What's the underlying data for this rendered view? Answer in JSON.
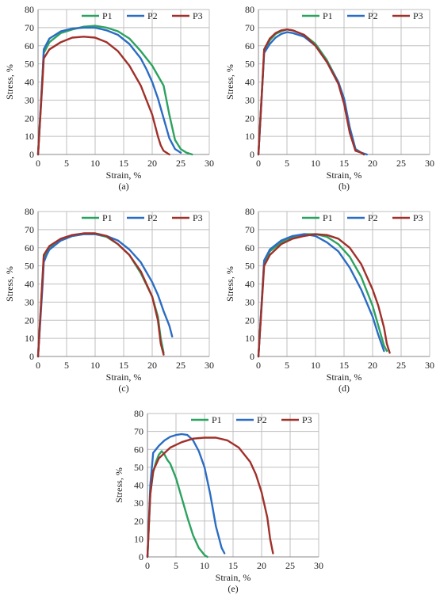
{
  "colors": {
    "P1": "#2ca25f",
    "P2": "#2b6cc4",
    "P3": "#a0302a",
    "grid": "#bfbfbf",
    "axis": "#8a8a8a"
  },
  "chart_data": [
    {
      "type": "line",
      "panel_label": "(a)",
      "xlabel": "Strain, %",
      "ylabel": "Stress, %",
      "xlim": [
        0,
        30
      ],
      "ylim": [
        0,
        80
      ],
      "xticks": [
        0,
        5,
        10,
        15,
        20,
        25,
        30
      ],
      "yticks": [
        0,
        10,
        20,
        30,
        40,
        50,
        60,
        70,
        80
      ],
      "grid": true,
      "legend_position": "top",
      "series": [
        {
          "name": "P1",
          "x": [
            0,
            0.8,
            1.0,
            2,
            4,
            6,
            8,
            10,
            12,
            14,
            16,
            18,
            20,
            22,
            23,
            24,
            25,
            26,
            27
          ],
          "y": [
            0,
            45,
            56,
            62,
            67,
            69,
            70.5,
            71,
            70,
            68,
            64,
            57,
            49,
            38,
            22,
            8,
            3,
            1,
            0
          ]
        },
        {
          "name": "P2",
          "x": [
            0,
            0.8,
            1.0,
            2,
            4,
            6,
            8,
            10,
            12,
            14,
            16,
            18,
            19,
            20,
            21,
            22,
            23,
            24,
            25
          ],
          "y": [
            0,
            45,
            58,
            64,
            68,
            69.5,
            70,
            70,
            68.5,
            66,
            61,
            53,
            47,
            40,
            31,
            20,
            9,
            3,
            1
          ]
        },
        {
          "name": "P3",
          "x": [
            0,
            0.8,
            1.0,
            2,
            4,
            6,
            8,
            10,
            12,
            14,
            16,
            18,
            19,
            20,
            21,
            21.5,
            22,
            23
          ],
          "y": [
            0,
            42,
            53,
            58,
            62,
            64.5,
            65,
            64.5,
            62,
            57,
            49,
            38,
            30,
            22,
            10,
            5,
            2,
            0
          ]
        }
      ]
    },
    {
      "type": "line",
      "panel_label": "(b)",
      "xlabel": "Strain, %",
      "ylabel": "Stress, %",
      "xlim": [
        0,
        30
      ],
      "ylim": [
        0,
        80
      ],
      "xticks": [
        0,
        5,
        10,
        15,
        20,
        25,
        30
      ],
      "yticks": [
        0,
        10,
        20,
        30,
        40,
        50,
        60,
        70,
        80
      ],
      "grid": true,
      "legend_position": "top",
      "series": [
        {
          "name": "P1",
          "x": [
            0,
            0.8,
            1.0,
            2,
            3,
            4,
            5,
            6,
            8,
            10,
            12,
            14,
            15,
            16,
            17,
            18,
            18.5
          ],
          "y": [
            0,
            45,
            57,
            63,
            66.5,
            68,
            69,
            68.5,
            66,
            61,
            52,
            40,
            30,
            14,
            3,
            1,
            0
          ]
        },
        {
          "name": "P2",
          "x": [
            0,
            0.8,
            1.0,
            2,
            3,
            4,
            5,
            6,
            8,
            10,
            12,
            14,
            15,
            16,
            17,
            18,
            19
          ],
          "y": [
            0,
            45,
            56,
            61,
            64.5,
            66.5,
            67.5,
            67,
            65,
            60,
            51,
            40,
            31,
            15,
            3,
            1,
            0
          ]
        },
        {
          "name": "P3",
          "x": [
            0,
            0.8,
            1.0,
            2,
            3,
            4,
            5,
            6,
            8,
            10,
            12,
            14,
            15,
            16,
            17,
            18,
            18.5
          ],
          "y": [
            0,
            46,
            58,
            64,
            67,
            68.5,
            69,
            68.5,
            66,
            60,
            51,
            39,
            28,
            12,
            2,
            1,
            0
          ]
        }
      ]
    },
    {
      "type": "line",
      "panel_label": "(c)",
      "xlabel": "Strain, %",
      "ylabel": "Stress, %",
      "xlim": [
        0,
        30
      ],
      "ylim": [
        0,
        80
      ],
      "xticks": [
        0,
        5,
        10,
        15,
        20,
        25,
        30
      ],
      "yticks": [
        0,
        10,
        20,
        30,
        40,
        50,
        60,
        70,
        80
      ],
      "grid": true,
      "legend_position": "top",
      "series": [
        {
          "name": "P1",
          "x": [
            0,
            0.8,
            1.0,
            2,
            4,
            6,
            8,
            10,
            12,
            14,
            16,
            18,
            20,
            21,
            21.5,
            22
          ],
          "y": [
            0,
            44,
            55,
            60,
            64,
            66.5,
            67.5,
            67.5,
            66,
            62,
            56,
            46,
            33,
            22,
            10,
            2
          ]
        },
        {
          "name": "P2",
          "x": [
            0,
            0.8,
            1.0,
            1.5,
            2,
            4,
            6,
            8,
            10,
            12,
            14,
            16,
            18,
            20,
            21,
            22,
            23,
            23.5
          ],
          "y": [
            0,
            40,
            52,
            56,
            59,
            64,
            66.5,
            67.5,
            67.5,
            66.5,
            64,
            59,
            52,
            41,
            34,
            25,
            17,
            11
          ]
        },
        {
          "name": "P3",
          "x": [
            0,
            0.8,
            1.0,
            2,
            4,
            6,
            8,
            10,
            12,
            14,
            16,
            18,
            20,
            21,
            21.5,
            22
          ],
          "y": [
            0,
            45,
            56,
            61,
            65,
            67,
            68,
            68,
            66.5,
            62,
            56,
            47,
            33,
            20,
            7,
            1
          ]
        }
      ]
    },
    {
      "type": "line",
      "panel_label": "(d)",
      "xlabel": "Strain, %",
      "ylabel": "Stress, %",
      "xlim": [
        0,
        30
      ],
      "ylim": [
        0,
        80
      ],
      "xticks": [
        0,
        5,
        10,
        15,
        20,
        25,
        30
      ],
      "yticks": [
        0,
        10,
        20,
        30,
        40,
        50,
        60,
        70,
        80
      ],
      "grid": true,
      "legend_position": "top",
      "series": [
        {
          "name": "P1",
          "x": [
            0,
            0.8,
            1.0,
            2,
            4,
            6,
            8,
            10,
            12,
            14,
            16,
            18,
            20,
            21,
            22,
            22.5
          ],
          "y": [
            0,
            42,
            52,
            58,
            63,
            66,
            67.5,
            67.5,
            66,
            62,
            55,
            44,
            28,
            17,
            6,
            3
          ]
        },
        {
          "name": "P2",
          "x": [
            0,
            0.8,
            1.0,
            2,
            4,
            6,
            8,
            10,
            12,
            14,
            16,
            18,
            20,
            21,
            22
          ],
          "y": [
            0,
            42,
            53,
            59,
            64,
            66.5,
            67.5,
            66.5,
            63,
            58,
            49,
            37,
            22,
            12,
            3
          ]
        },
        {
          "name": "P3",
          "x": [
            0,
            0.8,
            1.0,
            2,
            4,
            6,
            8,
            10,
            12,
            14,
            16,
            18,
            20,
            21,
            22,
            22.5,
            23
          ],
          "y": [
            0,
            40,
            50,
            56,
            62,
            65,
            66.5,
            67.5,
            67,
            65,
            60,
            51,
            37,
            28,
            16,
            7,
            2
          ]
        }
      ]
    },
    {
      "type": "line",
      "panel_label": "(e)",
      "xlabel": "Strain, %",
      "ylabel": "Stress, %",
      "xlim": [
        0,
        30
      ],
      "ylim": [
        0,
        80
      ],
      "xticks": [
        0,
        5,
        10,
        15,
        20,
        25,
        30
      ],
      "yticks": [
        0,
        10,
        20,
        30,
        40,
        50,
        60,
        70,
        80
      ],
      "grid": true,
      "legend_position": "top",
      "series": [
        {
          "name": "P1",
          "x": [
            0,
            0.5,
            1.0,
            1.5,
            2,
            2.5,
            3,
            3.5,
            4,
            5,
            6,
            7,
            8,
            9,
            10,
            10.5
          ],
          "y": [
            0,
            35,
            47,
            53,
            57,
            59,
            57,
            54,
            52,
            44,
            33,
            22,
            12,
            5,
            1,
            0
          ]
        },
        {
          "name": "P2",
          "x": [
            0,
            0.5,
            1.0,
            2,
            3,
            4,
            5,
            6,
            7,
            8,
            9,
            10,
            11,
            12,
            13,
            13.5
          ],
          "y": [
            0,
            40,
            58,
            62,
            65,
            67,
            68,
            68.5,
            68,
            65,
            59,
            50,
            35,
            17,
            5,
            2
          ]
        },
        {
          "name": "P3",
          "x": [
            0,
            0.5,
            1.0,
            2,
            4,
            6,
            8,
            10,
            12,
            14,
            16,
            18,
            19,
            20,
            21,
            21.5,
            22
          ],
          "y": [
            0,
            35,
            48,
            55,
            61,
            64,
            66,
            66.5,
            66.5,
            65,
            61,
            53,
            46,
            36,
            22,
            10,
            2
          ]
        }
      ]
    }
  ]
}
